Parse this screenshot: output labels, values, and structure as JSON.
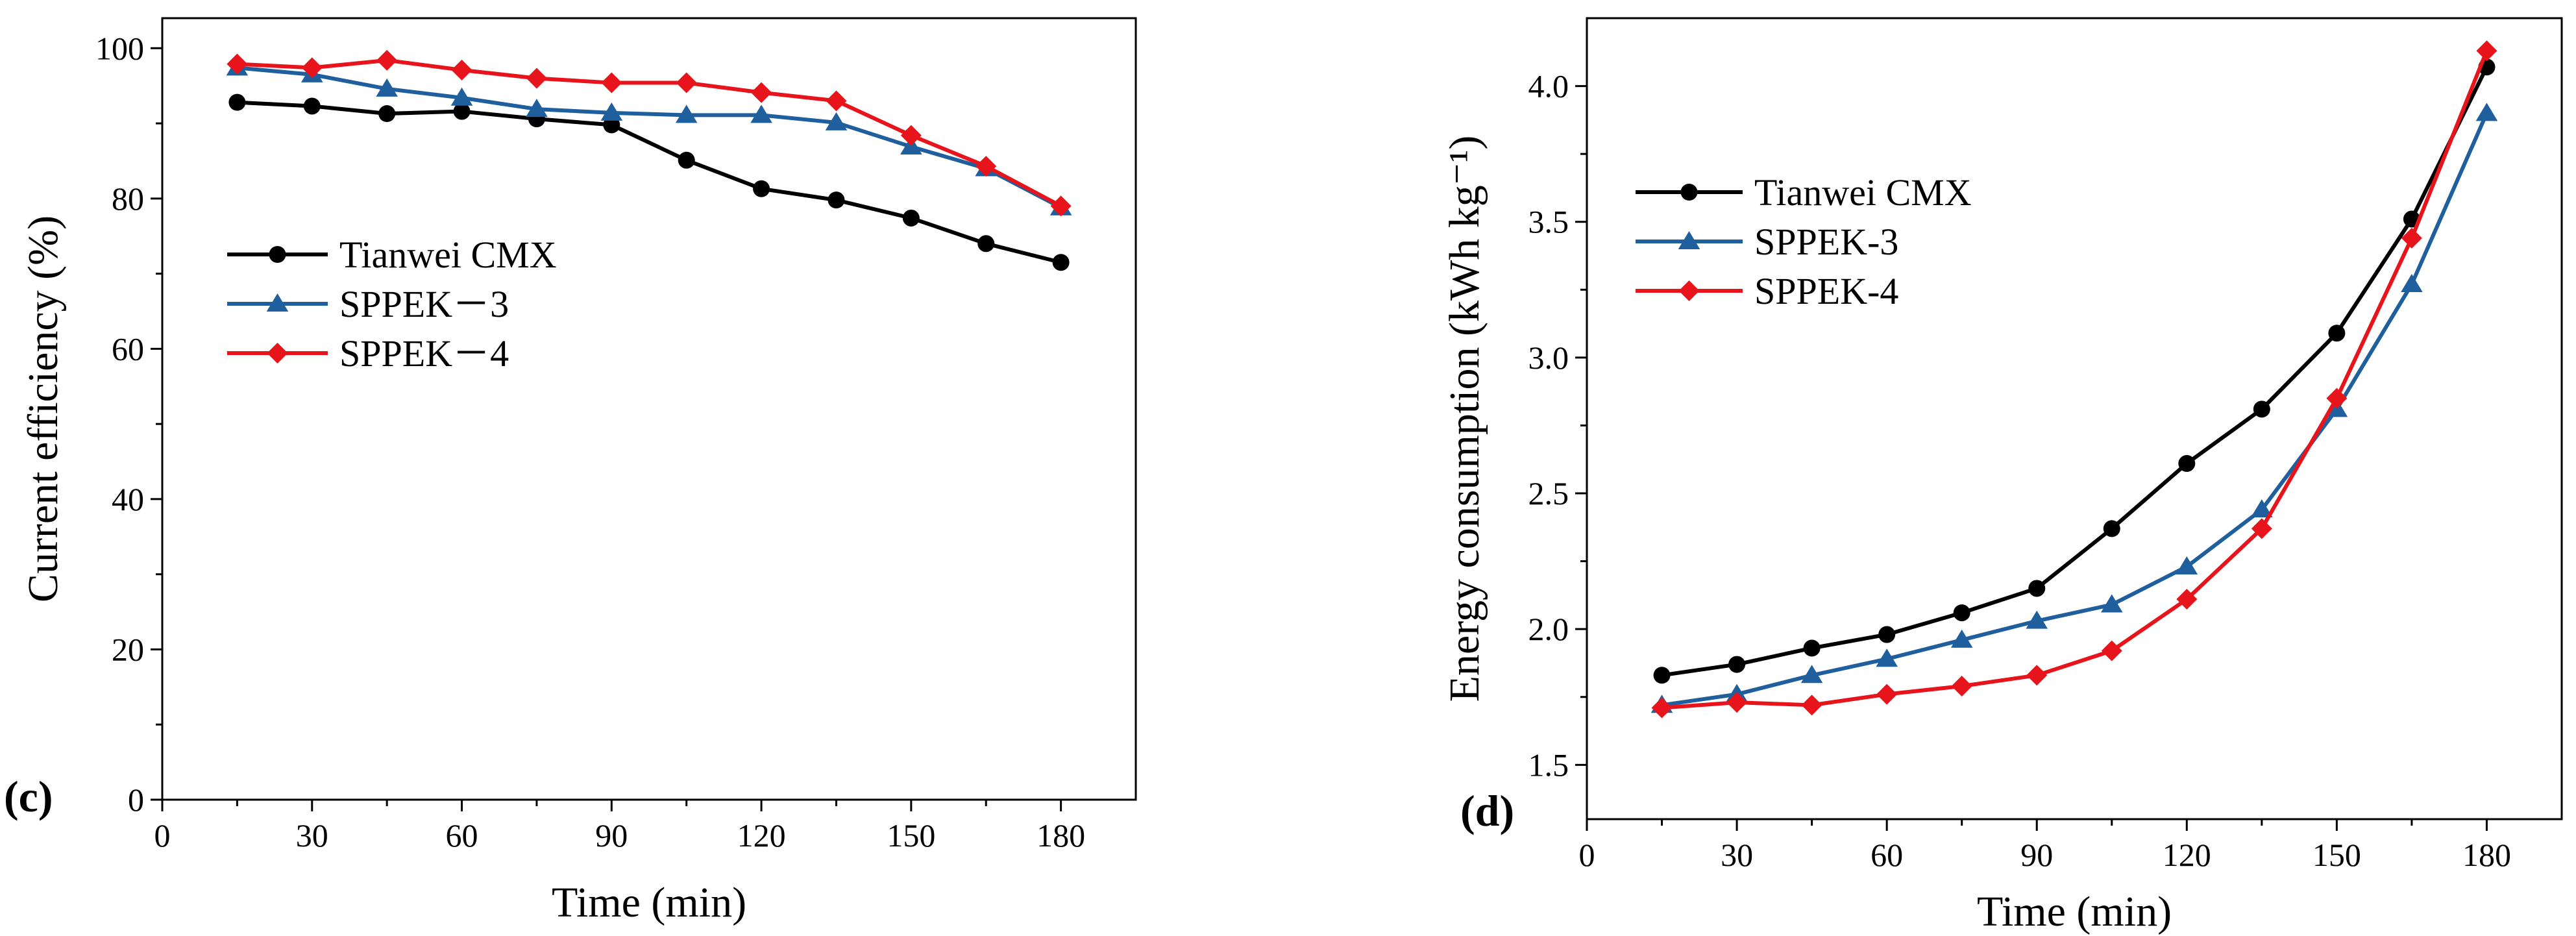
{
  "chart_data": [
    {
      "type": "line",
      "panel_label": "c",
      "xlabel": "Time (min)",
      "ylabel": "Current efficiency (%)",
      "xlim": [
        0,
        195
      ],
      "ylim": [
        0,
        104
      ],
      "xticks": [
        0,
        30,
        60,
        90,
        120,
        150,
        180
      ],
      "yticks": [
        0,
        20,
        40,
        60,
        80,
        100
      ],
      "grid": false,
      "legend_position": "center-left",
      "x": [
        15,
        30,
        45,
        60,
        75,
        90,
        105,
        120,
        135,
        150,
        165,
        180
      ],
      "series": [
        {
          "name": "Tianwei CMX",
          "color": "#000000",
          "marker": "circle",
          "values": [
            92.8,
            92.3,
            91.3,
            91.6,
            90.6,
            89.8,
            85.1,
            81.3,
            79.8,
            77.4,
            74.0,
            71.5
          ]
        },
        {
          "name": "SPPEK－3",
          "color": "#1f5f9e",
          "marker": "triangle",
          "values": [
            97.4,
            96.5,
            94.6,
            93.4,
            91.9,
            91.4,
            91.1,
            91.1,
            90.1,
            86.9,
            84.0,
            78.8
          ]
        },
        {
          "name": "SPPEK－4",
          "color": "#e8141c",
          "marker": "diamond",
          "values": [
            97.9,
            97.4,
            98.4,
            97.1,
            96.0,
            95.4,
            95.4,
            94.1,
            93.0,
            88.4,
            84.3,
            79.0
          ]
        }
      ]
    },
    {
      "type": "line",
      "panel_label": "d",
      "xlabel": "Time (min)",
      "ylabel": "Energy consumption (kWh kg⁻¹)",
      "xlim": [
        0,
        195
      ],
      "ylim": [
        1.3,
        4.25
      ],
      "xticks": [
        0,
        30,
        60,
        90,
        120,
        150,
        180
      ],
      "yticks": [
        1.5,
        2.0,
        2.5,
        3.0,
        3.5,
        4.0
      ],
      "ytick_labels": [
        "1.5",
        "2.0",
        "2.5",
        "3.0",
        "3.5",
        "4.0"
      ],
      "grid": false,
      "legend_position": "top-left",
      "x": [
        15,
        30,
        45,
        60,
        75,
        90,
        105,
        120,
        135,
        150,
        165,
        180
      ],
      "series": [
        {
          "name": "Tianwei CMX",
          "color": "#000000",
          "marker": "circle",
          "values": [
            1.83,
            1.87,
            1.93,
            1.98,
            2.06,
            2.15,
            2.37,
            2.61,
            2.81,
            3.09,
            3.51,
            4.07
          ]
        },
        {
          "name": "SPPEK-3",
          "color": "#1f5f9e",
          "marker": "triangle",
          "values": [
            1.72,
            1.76,
            1.83,
            1.89,
            1.96,
            2.03,
            2.09,
            2.23,
            2.44,
            2.81,
            3.27,
            3.9
          ]
        },
        {
          "name": "SPPEK-4",
          "color": "#e8141c",
          "marker": "diamond",
          "values": [
            1.71,
            1.73,
            1.72,
            1.76,
            1.79,
            1.83,
            1.92,
            2.11,
            2.37,
            2.85,
            3.44,
            4.13
          ]
        }
      ]
    }
  ]
}
